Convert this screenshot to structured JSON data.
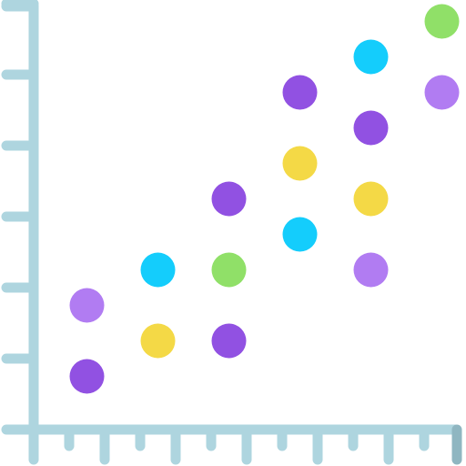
{
  "chart_data": {
    "type": "scatter",
    "xlim": [
      0,
      12
    ],
    "ylim": [
      0,
      12
    ],
    "xticks": [
      1,
      2,
      3,
      4,
      5,
      6,
      7,
      8,
      9,
      10,
      11
    ],
    "yticks": [
      2,
      4,
      6,
      8,
      10,
      12
    ],
    "series": [
      {
        "color": "#9151e2",
        "x": [
          1.5,
          5.5,
          5.5,
          7.5,
          9.5
        ],
        "values": [
          1.5,
          2.5,
          6.5,
          9.5,
          8.5
        ]
      },
      {
        "color": "#b17cf2",
        "x": [
          1.5,
          9.5,
          11.5
        ],
        "values": [
          3.5,
          4.5,
          9.5
        ]
      },
      {
        "color": "#f4d946",
        "x": [
          3.5,
          7.5,
          9.5
        ],
        "values": [
          2.5,
          7.5,
          6.5
        ]
      },
      {
        "color": "#14cdfc",
        "x": [
          3.5,
          7.5,
          9.5
        ],
        "values": [
          4.5,
          5.5,
          10.5
        ]
      },
      {
        "color": "#90e068",
        "x": [
          5.5,
          11.5
        ],
        "values": [
          4.5,
          11.5
        ]
      }
    ]
  }
}
